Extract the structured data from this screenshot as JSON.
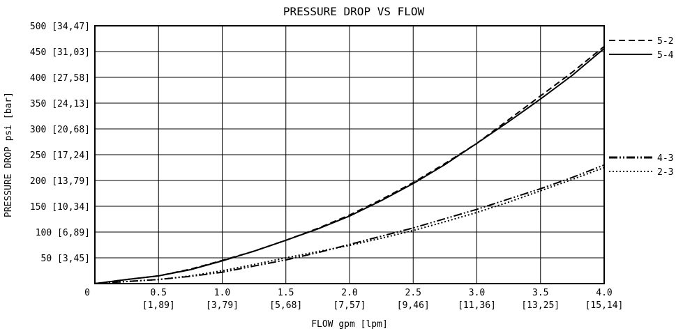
{
  "chart_data": {
    "type": "line",
    "title": "PRESSURE DROP VS FLOW",
    "xlabel": "FLOW gpm [lpm]",
    "ylabel": "PRESSURE DROP psi [bar]",
    "xlim": [
      0,
      4.0
    ],
    "ylim": [
      0,
      500
    ],
    "grid": true,
    "legend_position": "right",
    "x_ticks": [
      {
        "value": 0,
        "label": "0",
        "sub": ""
      },
      {
        "value": 0.5,
        "label": "0.5",
        "sub": "[1,89]"
      },
      {
        "value": 1.0,
        "label": "1.0",
        "sub": "[3,79]"
      },
      {
        "value": 1.5,
        "label": "1.5",
        "sub": "[5,68]"
      },
      {
        "value": 2.0,
        "label": "2.0",
        "sub": "[7,57]"
      },
      {
        "value": 2.5,
        "label": "2.5",
        "sub": "[9,46]"
      },
      {
        "value": 3.0,
        "label": "3.0",
        "sub": "[11,36]"
      },
      {
        "value": 3.5,
        "label": "3.5",
        "sub": "[13,25]"
      },
      {
        "value": 4.0,
        "label": "4.0",
        "sub": "[15,14]"
      }
    ],
    "y_ticks": [
      {
        "value": 50,
        "label": "50 [3,45]"
      },
      {
        "value": 100,
        "label": "100 [6,89]"
      },
      {
        "value": 150,
        "label": "150 [10,34]"
      },
      {
        "value": 200,
        "label": "200 [13,79]"
      },
      {
        "value": 250,
        "label": "250 [17,24]"
      },
      {
        "value": 300,
        "label": "300 [20,68]"
      },
      {
        "value": 350,
        "label": "350 [24,13]"
      },
      {
        "value": 400,
        "label": "400 [27,58]"
      },
      {
        "value": 450,
        "label": "450 [31,03]"
      },
      {
        "value": 500,
        "label": "500 [34,47]"
      }
    ],
    "series": [
      {
        "name": "5-2",
        "dash": "dashed",
        "x": [
          0,
          0.25,
          0.5,
          0.75,
          1.0,
          1.25,
          1.5,
          1.75,
          2.0,
          2.25,
          2.5,
          2.75,
          3.0,
          3.25,
          3.5,
          3.75,
          4.0
        ],
        "y": [
          0,
          8,
          15,
          28,
          45,
          63,
          84,
          107,
          133,
          163,
          196,
          233,
          272,
          318,
          364,
          410,
          460
        ]
      },
      {
        "name": "5-4",
        "dash": "solid",
        "x": [
          0,
          0.25,
          0.5,
          0.75,
          1.0,
          1.25,
          1.5,
          1.75,
          2.0,
          2.25,
          2.5,
          2.75,
          3.0,
          3.25,
          3.5,
          3.75,
          4.0
        ],
        "y": [
          0,
          8,
          15,
          27,
          44,
          63,
          84,
          106,
          131,
          161,
          194,
          231,
          272,
          314,
          358,
          404,
          456
        ]
      },
      {
        "name": "4-3",
        "dash": "dash-dot-dot",
        "x": [
          0,
          0.25,
          0.5,
          0.75,
          1.0,
          1.25,
          1.5,
          1.75,
          2.0,
          2.25,
          2.5,
          2.75,
          3.0,
          3.25,
          3.5,
          3.75,
          4.0
        ],
        "y": [
          0,
          4,
          8,
          14,
          22,
          34,
          46,
          60,
          76,
          92,
          108,
          126,
          144,
          164,
          184,
          206,
          230
        ]
      },
      {
        "name": "2-3",
        "dash": "dotted",
        "x": [
          0,
          0.25,
          0.5,
          0.75,
          1.0,
          1.25,
          1.5,
          1.75,
          2.0,
          2.25,
          2.5,
          2.75,
          3.0,
          3.25,
          3.5,
          3.75,
          4.0
        ],
        "y": [
          0,
          4,
          8,
          15,
          25,
          37,
          50,
          62,
          74,
          88,
          103,
          120,
          138,
          158,
          180,
          202,
          225
        ]
      }
    ]
  }
}
